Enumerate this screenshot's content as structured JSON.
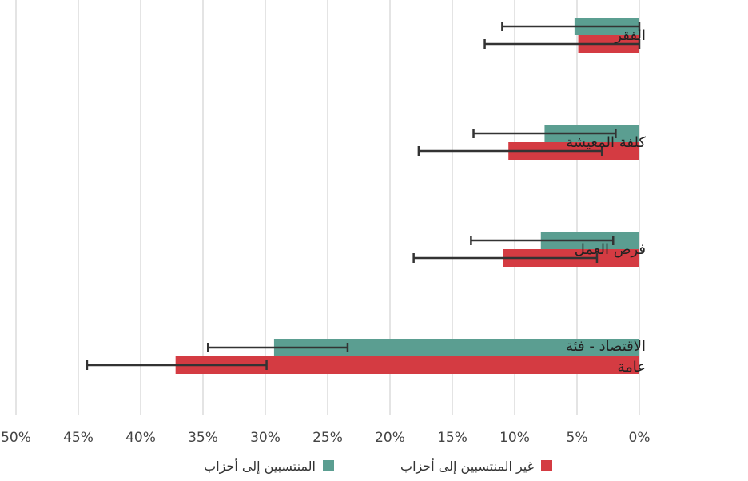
{
  "chart_data": {
    "type": "bar",
    "orientation": "horizontal",
    "x_reversed": true,
    "categories": [
      [
        "الفقر"
      ],
      [
        "كلفة المعيشة"
      ],
      [
        "فرص العمل"
      ],
      [
        "الاقتصاد - فئة",
        "عامة"
      ]
    ],
    "series": [
      {
        "name": "المنتسبين إلى أحزاب",
        "color": "#5b9e91",
        "values": [
          5.2,
          7.6,
          7.9,
          29.3
        ],
        "error_low": [
          0,
          1.9,
          2.1,
          23.4
        ],
        "error_high": [
          11.0,
          13.3,
          13.5,
          34.6
        ]
      },
      {
        "name": "غير المنتسبين إلى أحزاب",
        "color": "#d43b42",
        "values": [
          4.9,
          10.5,
          10.9,
          37.2
        ],
        "error_low": [
          0,
          3.0,
          3.4,
          29.9
        ],
        "error_high": [
          12.4,
          17.7,
          18.1,
          44.3
        ]
      }
    ],
    "xlim": [
      0,
      50
    ],
    "x_ticks": [
      "0%",
      "5%",
      "10%",
      "15%",
      "20%",
      "25%",
      "30%",
      "35%",
      "40%",
      "45%",
      "50%"
    ],
    "grid": true,
    "legend_position": "bottom-center",
    "title": "",
    "xlabel": "",
    "ylabel": ""
  }
}
